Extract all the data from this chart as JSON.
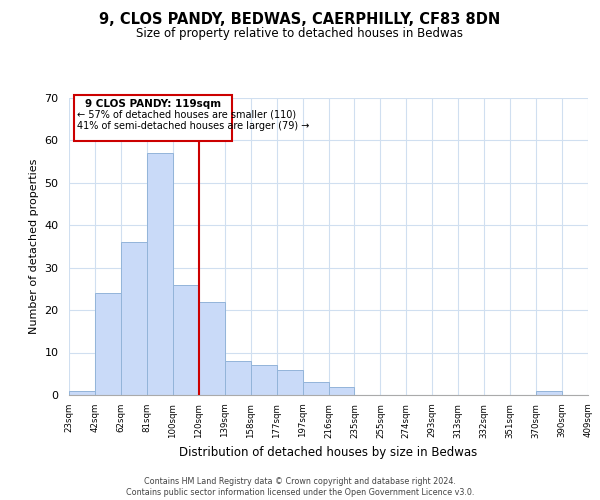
{
  "title": "9, CLOS PANDY, BEDWAS, CAERPHILLY, CF83 8DN",
  "subtitle": "Size of property relative to detached houses in Bedwas",
  "xlabel": "Distribution of detached houses by size in Bedwas",
  "ylabel": "Number of detached properties",
  "tick_labels": [
    "23sqm",
    "42sqm",
    "62sqm",
    "81sqm",
    "100sqm",
    "120sqm",
    "139sqm",
    "158sqm",
    "177sqm",
    "197sqm",
    "216sqm",
    "235sqm",
    "255sqm",
    "274sqm",
    "293sqm",
    "313sqm",
    "332sqm",
    "351sqm",
    "370sqm",
    "390sqm",
    "409sqm"
  ],
  "bar_values": [
    1,
    24,
    36,
    57,
    26,
    22,
    8,
    7,
    6,
    3,
    2,
    0,
    0,
    0,
    0,
    0,
    0,
    0,
    1,
    0
  ],
  "bar_color": "#c9daf8",
  "bar_edge_color": "#93b4d9",
  "ylim": [
    0,
    70
  ],
  "yticks": [
    0,
    10,
    20,
    30,
    40,
    50,
    60,
    70
  ],
  "annotation_title": "9 CLOS PANDY: 119sqm",
  "annotation_line1": "← 57% of detached houses are smaller (110)",
  "annotation_line2": "41% of semi-detached houses are larger (79) →",
  "annotation_box_color": "#ffffff",
  "annotation_box_edge": "#cc0000",
  "red_line_color": "#cc0000",
  "grid_color": "#d0dff0",
  "background_color": "#ffffff",
  "footer_line1": "Contains HM Land Registry data © Crown copyright and database right 2024.",
  "footer_line2": "Contains public sector information licensed under the Open Government Licence v3.0."
}
